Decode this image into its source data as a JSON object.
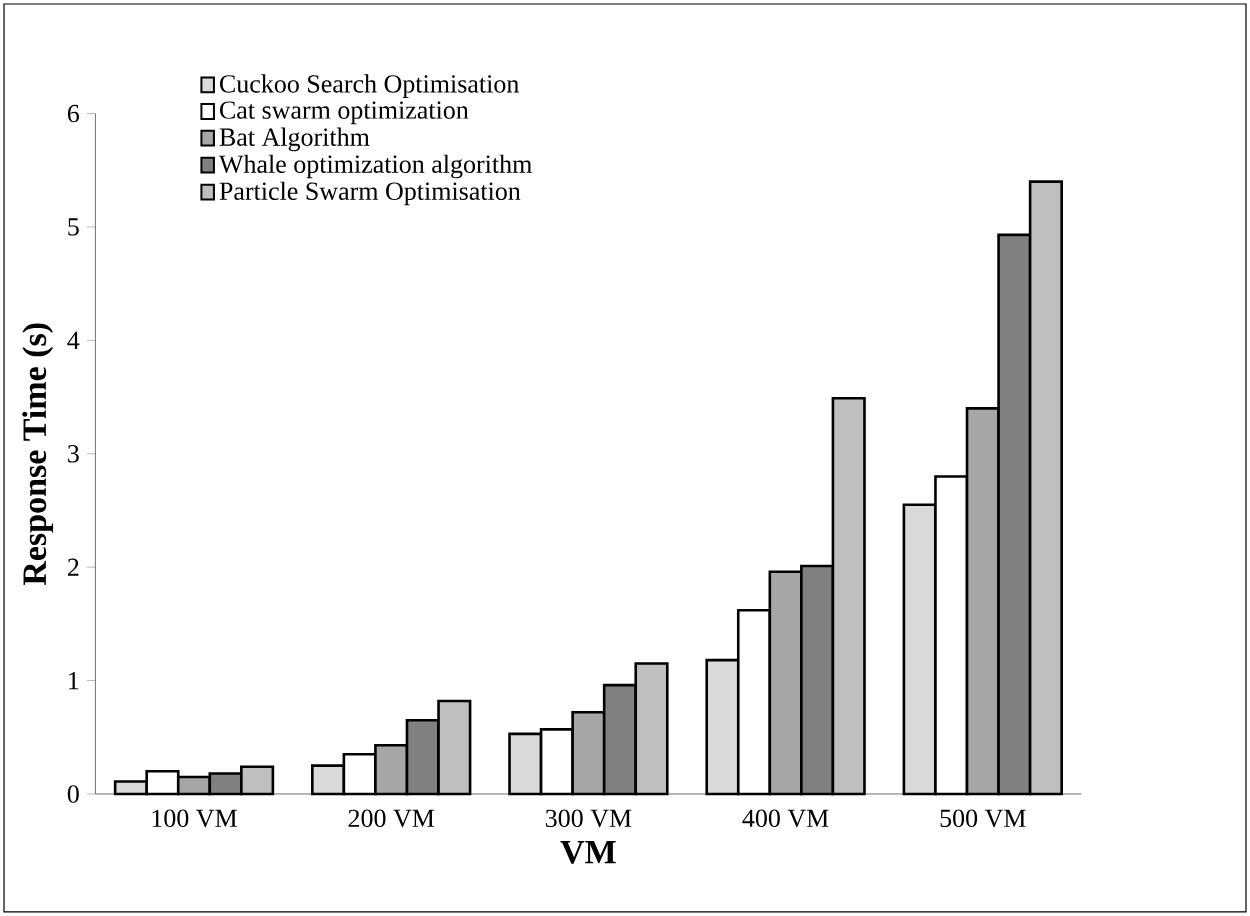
{
  "chart_data": {
    "type": "bar",
    "xlabel": "VM",
    "ylabel": "Response Time (s)",
    "categories": [
      "100 VM",
      "200 VM",
      "300 VM",
      "400 VM",
      "500 VM"
    ],
    "series": [
      {
        "name": "Cuckoo Search Optimisation",
        "color": "#d9d9d9",
        "values": [
          0.11,
          0.25,
          0.53,
          1.18,
          2.55
        ]
      },
      {
        "name": "Cat swarm optimization",
        "color": "#ffffff",
        "values": [
          0.2,
          0.35,
          0.57,
          1.62,
          2.8
        ]
      },
      {
        "name": "Bat Algorithm",
        "color": "#a6a6a6",
        "values": [
          0.15,
          0.43,
          0.72,
          1.96,
          3.4
        ]
      },
      {
        "name": "Whale optimization algorithm",
        "color": "#808080",
        "values": [
          0.18,
          0.65,
          0.96,
          2.01,
          4.93
        ]
      },
      {
        "name": "Particle Swarm Optimisation",
        "color": "#bfbfbf",
        "values": [
          0.24,
          0.82,
          1.15,
          3.49,
          5.4
        ]
      }
    ],
    "ylim": [
      0,
      6
    ],
    "yticks": [
      0,
      1,
      2,
      3,
      4,
      5,
      6
    ],
    "legend": "top left",
    "grid": false
  }
}
